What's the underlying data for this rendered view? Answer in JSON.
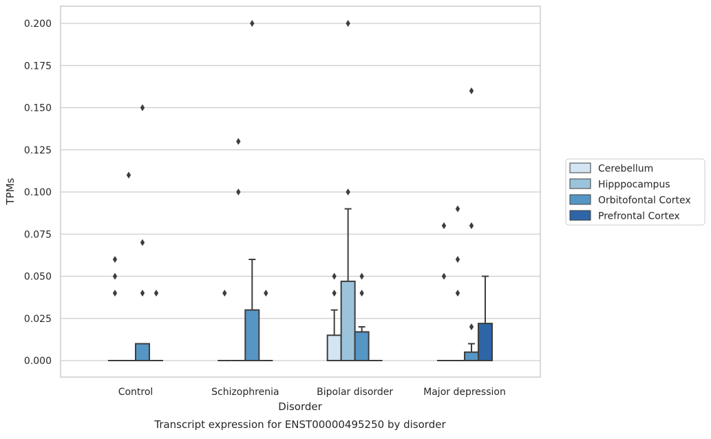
{
  "chart_data": {
    "type": "boxplot",
    "xlabel": "Disorder",
    "ylabel": "TPMs",
    "caption": "Transcript expression for ENST00000495250 by disorder",
    "ylim": [
      -0.01,
      0.21
    ],
    "yticks": [
      0.0,
      0.025,
      0.05,
      0.075,
      0.1,
      0.125,
      0.15,
      0.175,
      0.2
    ],
    "ytick_labels": [
      "0.000",
      "0.025",
      "0.050",
      "0.075",
      "0.100",
      "0.125",
      "0.150",
      "0.175",
      "0.200"
    ],
    "grid": true,
    "legend_position": "right",
    "categories": [
      "Control",
      "Schizophrenia",
      "Bipolar disorder",
      "Major depression"
    ],
    "series": [
      {
        "name": "Cerebellum",
        "color": "#d3e4f3",
        "boxes": [
          {
            "q1": 0,
            "median": 0,
            "q3": 0,
            "whisker_low": 0,
            "whisker_high": 0,
            "outliers": [
              0.04,
              0.05,
              0.06
            ]
          },
          {
            "q1": 0,
            "median": 0,
            "q3": 0,
            "whisker_low": 0,
            "whisker_high": 0,
            "outliers": [
              0.04
            ]
          },
          {
            "q1": 0,
            "median": 0,
            "q3": 0.015,
            "whisker_low": 0,
            "whisker_high": 0.03,
            "outliers": [
              0.04,
              0.05
            ]
          },
          {
            "q1": 0,
            "median": 0,
            "q3": 0,
            "whisker_low": 0,
            "whisker_high": 0,
            "outliers": [
              0.05,
              0.08
            ]
          }
        ]
      },
      {
        "name": "Hipppocampus",
        "color": "#9cc3dc",
        "boxes": [
          {
            "q1": 0,
            "median": 0,
            "q3": 0,
            "whisker_low": 0,
            "whisker_high": 0,
            "outliers": [
              0.11
            ]
          },
          {
            "q1": 0,
            "median": 0,
            "q3": 0,
            "whisker_low": 0,
            "whisker_high": 0,
            "outliers": [
              0.1,
              0.13
            ]
          },
          {
            "q1": 0,
            "median": 0,
            "q3": 0.047,
            "whisker_low": 0,
            "whisker_high": 0.09,
            "outliers": [
              0.1,
              0.2
            ]
          },
          {
            "q1": 0,
            "median": 0,
            "q3": 0,
            "whisker_low": 0,
            "whisker_high": 0,
            "outliers": [
              0.04,
              0.06,
              0.09
            ]
          }
        ]
      },
      {
        "name": "Orbitofontal Cortex",
        "color": "#5596c5",
        "boxes": [
          {
            "q1": 0,
            "median": 0,
            "q3": 0.01,
            "whisker_low": 0,
            "whisker_high": 0.01,
            "outliers": [
              0.04,
              0.07,
              0.15
            ]
          },
          {
            "q1": 0,
            "median": 0,
            "q3": 0.03,
            "whisker_low": 0,
            "whisker_high": 0.06,
            "outliers": [
              0.2
            ]
          },
          {
            "q1": 0,
            "median": 0,
            "q3": 0.017,
            "whisker_low": 0,
            "whisker_high": 0.02,
            "outliers": [
              0.04,
              0.05
            ]
          },
          {
            "q1": 0,
            "median": 0,
            "q3": 0.005,
            "whisker_low": 0,
            "whisker_high": 0.01,
            "outliers": [
              0.02,
              0.08,
              0.16
            ]
          }
        ]
      },
      {
        "name": "Prefrontal Cortex",
        "color": "#2d65a7",
        "boxes": [
          {
            "q1": 0,
            "median": 0,
            "q3": 0,
            "whisker_low": 0,
            "whisker_high": 0,
            "outliers": [
              0.04
            ]
          },
          {
            "q1": 0,
            "median": 0,
            "q3": 0,
            "whisker_low": 0,
            "whisker_high": 0,
            "outliers": [
              0.04
            ]
          },
          {
            "q1": 0,
            "median": 0,
            "q3": 0,
            "whisker_low": 0,
            "whisker_high": 0,
            "outliers": []
          },
          {
            "q1": 0,
            "median": 0,
            "q3": 0.022,
            "whisker_low": 0,
            "whisker_high": 0.05,
            "outliers": []
          }
        ]
      }
    ]
  }
}
